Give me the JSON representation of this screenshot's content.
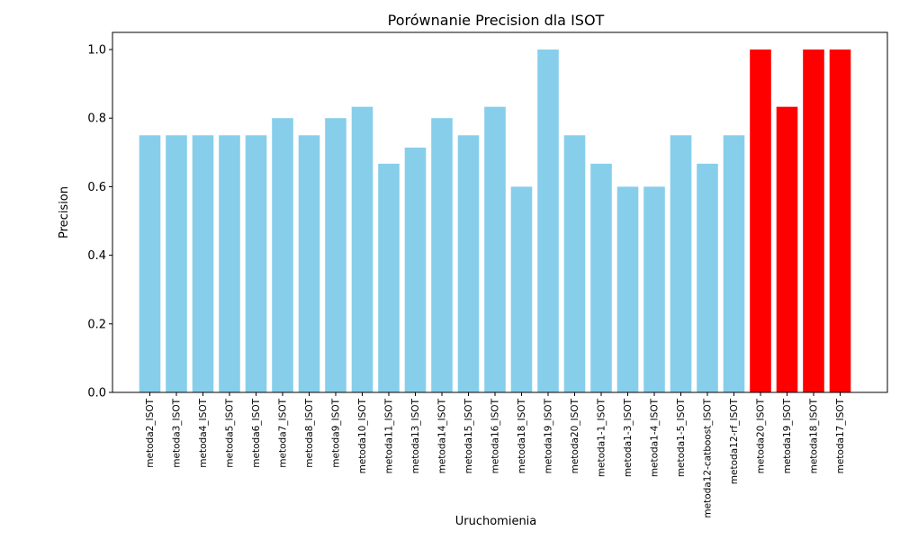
{
  "chart_data": {
    "type": "bar",
    "title": "Porównanie Precision dla ISOT",
    "xlabel": "Uruchomienia",
    "ylabel": "Precision",
    "ylim": [
      0,
      1.05
    ],
    "yticks": [
      0.0,
      0.2,
      0.4,
      0.6,
      0.8,
      1.0
    ],
    "ytick_labels": [
      "0.0",
      "0.2",
      "0.4",
      "0.6",
      "0.8",
      "1.0"
    ],
    "grid": false,
    "default_color": "#87CEEB",
    "highlight_color": "#FF0000",
    "categories": [
      "metoda2_ISOT",
      "metoda3_ISOT",
      "metoda4_ISOT",
      "metoda5_ISOT",
      "metoda6_ISOT",
      "metoda7_ISOT",
      "metoda8_ISOT",
      "metoda9_ISOT",
      "metoda10_ISOT",
      "metoda11_ISOT",
      "metoda13_ISOT",
      "metoda14_ISOT",
      "metoda15_ISOT",
      "metoda16_ISOT",
      "metoda18_ISOT",
      "metoda19_ISOT",
      "metoda20_ISOT",
      "metoda1-1_ISOT",
      "metoda1-3_ISOT",
      "metoda1-4_ISOT",
      "metoda1-5_ISOT",
      "metoda12-catboost_ISOT",
      "metoda12-rf_ISOT",
      "metoda20_ISOT",
      "metoda19_ISOT",
      "metoda18_ISOT",
      "metoda17_ISOT"
    ],
    "values": [
      0.75,
      0.75,
      0.75,
      0.75,
      0.75,
      0.8,
      0.75,
      0.8,
      0.833,
      0.667,
      0.714,
      0.8,
      0.75,
      0.833,
      0.6,
      1.0,
      0.75,
      0.667,
      0.6,
      0.6,
      0.75,
      0.667,
      0.75,
      1.0,
      0.833,
      1.0,
      1.0
    ],
    "colors": [
      "#87CEEB",
      "#87CEEB",
      "#87CEEB",
      "#87CEEB",
      "#87CEEB",
      "#87CEEB",
      "#87CEEB",
      "#87CEEB",
      "#87CEEB",
      "#87CEEB",
      "#87CEEB",
      "#87CEEB",
      "#87CEEB",
      "#87CEEB",
      "#87CEEB",
      "#87CEEB",
      "#87CEEB",
      "#87CEEB",
      "#87CEEB",
      "#87CEEB",
      "#87CEEB",
      "#87CEEB",
      "#87CEEB",
      "#FF0000",
      "#FF0000",
      "#FF0000",
      "#FF0000"
    ]
  }
}
